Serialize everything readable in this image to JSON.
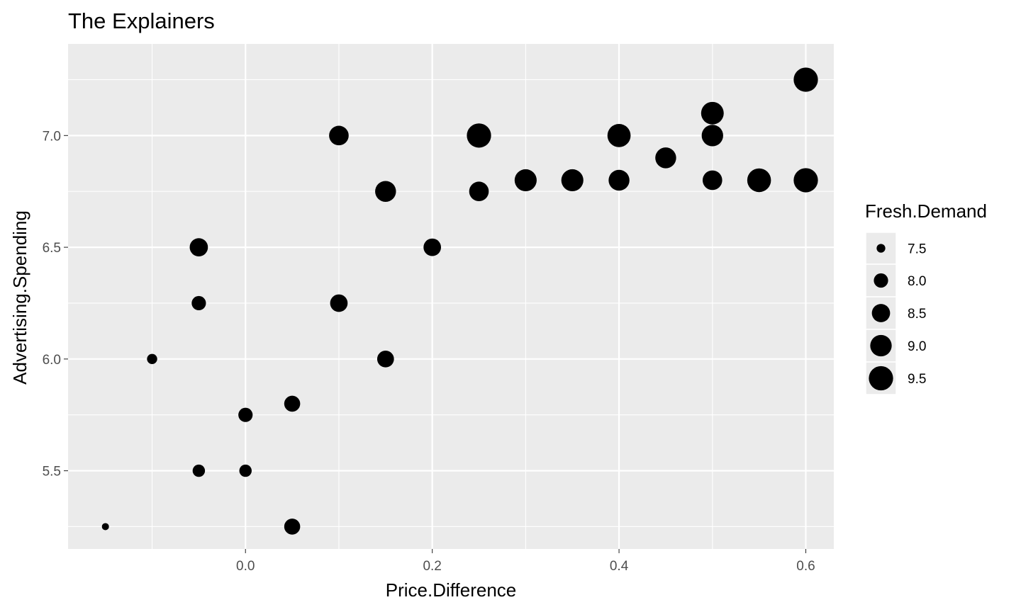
{
  "chart_data": {
    "type": "scatter",
    "title": "The Explainers",
    "xlabel": "Price.Difference",
    "ylabel": "Advertising.Spending",
    "xlim": [
      -0.19,
      0.63
    ],
    "ylim": [
      5.15,
      7.41
    ],
    "x_ticks": [
      {
        "value": 0.0,
        "label": "0.0"
      },
      {
        "value": 0.2,
        "label": "0.2"
      },
      {
        "value": 0.4,
        "label": "0.4"
      },
      {
        "value": 0.6,
        "label": "0.6"
      }
    ],
    "y_ticks": [
      {
        "value": 5.5,
        "label": "5.5"
      },
      {
        "value": 6.0,
        "label": "6.0"
      },
      {
        "value": 6.5,
        "label": "6.5"
      },
      {
        "value": 7.0,
        "label": "7.0"
      }
    ],
    "grid": true,
    "legend": {
      "title": "Fresh.Demand",
      "position": "right",
      "entries": [
        {
          "value": 7.5,
          "label": "7.5"
        },
        {
          "value": 8.0,
          "label": "8.0"
        },
        {
          "value": 8.5,
          "label": "8.5"
        },
        {
          "value": 9.0,
          "label": "9.0"
        },
        {
          "value": 9.5,
          "label": "9.5"
        }
      ]
    },
    "size_range": [
      7.4,
      9.6
    ],
    "point_color": "#000000",
    "points": [
      {
        "x": -0.15,
        "y": 5.25,
        "size": 7.38
      },
      {
        "x": -0.1,
        "y": 6.0,
        "size": 7.61
      },
      {
        "x": -0.05,
        "y": 6.5,
        "size": 8.5
      },
      {
        "x": -0.05,
        "y": 6.25,
        "size": 8.0
      },
      {
        "x": -0.05,
        "y": 5.5,
        "size": 7.8
      },
      {
        "x": 0.0,
        "y": 5.75,
        "size": 8.0
      },
      {
        "x": 0.0,
        "y": 5.5,
        "size": 7.8
      },
      {
        "x": 0.05,
        "y": 5.8,
        "size": 8.2
      },
      {
        "x": 0.05,
        "y": 5.25,
        "size": 8.2
      },
      {
        "x": 0.1,
        "y": 7.0,
        "size": 8.7
      },
      {
        "x": 0.1,
        "y": 6.25,
        "size": 8.4
      },
      {
        "x": 0.15,
        "y": 6.75,
        "size": 8.9
      },
      {
        "x": 0.15,
        "y": 6.0,
        "size": 8.3
      },
      {
        "x": 0.2,
        "y": 6.5,
        "size": 8.4
      },
      {
        "x": 0.25,
        "y": 7.0,
        "size": 9.5
      },
      {
        "x": 0.25,
        "y": 6.75,
        "size": 8.7
      },
      {
        "x": 0.3,
        "y": 6.8,
        "size": 9.1
      },
      {
        "x": 0.35,
        "y": 6.8,
        "size": 9.1
      },
      {
        "x": 0.4,
        "y": 7.0,
        "size": 9.3
      },
      {
        "x": 0.4,
        "y": 6.8,
        "size": 8.9
      },
      {
        "x": 0.45,
        "y": 6.9,
        "size": 8.9
      },
      {
        "x": 0.5,
        "y": 7.1,
        "size": 9.2
      },
      {
        "x": 0.5,
        "y": 7.0,
        "size": 9.0
      },
      {
        "x": 0.5,
        "y": 6.8,
        "size": 8.7
      },
      {
        "x": 0.55,
        "y": 6.8,
        "size": 9.4
      },
      {
        "x": 0.6,
        "y": 7.25,
        "size": 9.5
      },
      {
        "x": 0.6,
        "y": 6.8,
        "size": 9.5
      }
    ]
  }
}
